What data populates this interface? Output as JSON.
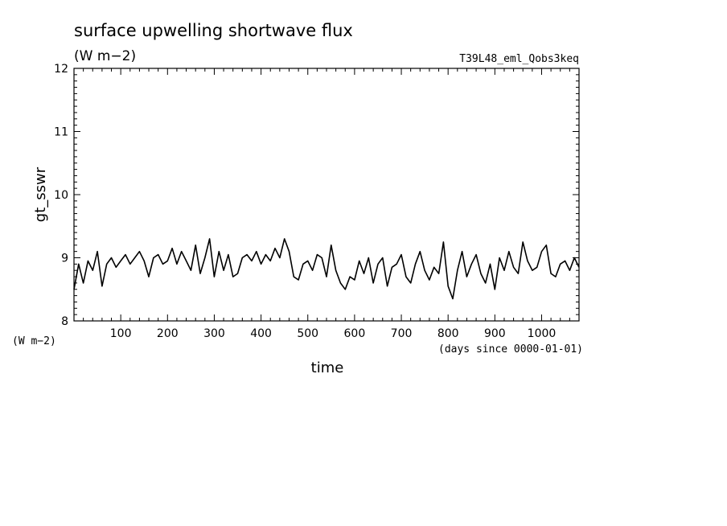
{
  "chart_data": {
    "type": "line",
    "title": "surface upwelling shortwave flux",
    "title_units": "(W m−2)",
    "run_label": "T39L48_eml_Qobs3keq",
    "xlabel": "time",
    "x_units": "(days since 0000-01-01)",
    "ylabel": "gt_sswr",
    "y_units": "(W m−2)",
    "xlim": [
      0,
      1080
    ],
    "ylim": [
      8,
      12
    ],
    "x_tick_labels": [
      "100",
      "200",
      "300",
      "400",
      "500",
      "600",
      "700",
      "800",
      "900",
      "1000"
    ],
    "y_tick_labels": [
      "8",
      "9",
      "10",
      "11",
      "12"
    ],
    "grid": false,
    "line_color": "#000000",
    "series": [
      {
        "x": [
          0,
          10,
          20,
          30,
          40,
          50,
          60,
          70,
          80,
          90,
          100,
          110,
          120,
          130,
          140,
          150,
          160,
          170,
          180,
          190,
          200,
          210,
          220,
          230,
          240,
          250,
          260,
          270,
          280,
          290,
          300,
          310,
          320,
          330,
          340,
          350,
          360,
          370,
          380,
          390,
          400,
          410,
          420,
          430,
          440,
          450,
          460,
          470,
          480,
          490,
          500,
          510,
          520,
          530,
          540,
          550,
          560,
          570,
          580,
          590,
          600,
          610,
          620,
          630,
          640,
          650,
          660,
          670,
          680,
          690,
          700,
          710,
          720,
          730,
          740,
          750,
          760,
          770,
          780,
          790,
          800,
          810,
          820,
          830,
          840,
          850,
          860,
          870,
          880,
          890,
          900,
          910,
          920,
          930,
          940,
          950,
          960,
          970,
          980,
          990,
          1000,
          1010,
          1020,
          1030,
          1040,
          1050,
          1060,
          1070,
          1080
        ],
        "values": [
          8.5,
          8.9,
          8.6,
          8.95,
          8.8,
          9.1,
          8.55,
          8.9,
          9.0,
          8.85,
          8.95,
          9.05,
          8.9,
          9.0,
          9.1,
          8.95,
          8.7,
          9.0,
          9.05,
          8.9,
          8.95,
          9.15,
          8.9,
          9.1,
          8.95,
          8.8,
          9.2,
          8.75,
          9.0,
          9.3,
          8.7,
          9.1,
          8.8,
          9.05,
          8.7,
          8.75,
          9.0,
          9.05,
          8.95,
          9.1,
          8.9,
          9.05,
          8.95,
          9.15,
          9.0,
          9.3,
          9.1,
          8.7,
          8.65,
          8.9,
          8.95,
          8.8,
          9.05,
          9.0,
          8.7,
          9.2,
          8.8,
          8.6,
          8.5,
          8.7,
          8.65,
          8.95,
          8.75,
          9.0,
          8.6,
          8.9,
          9.0,
          8.55,
          8.85,
          8.9,
          9.05,
          8.7,
          8.6,
          8.9,
          9.1,
          8.8,
          8.65,
          8.85,
          8.75,
          9.25,
          8.55,
          8.35,
          8.8,
          9.1,
          8.7,
          8.9,
          9.05,
          8.75,
          8.6,
          8.9,
          8.5,
          9.0,
          8.8,
          9.1,
          8.85,
          8.75,
          9.25,
          8.95,
          8.8,
          8.85,
          9.1,
          9.2,
          8.75,
          8.7,
          8.9,
          8.95,
          8.8,
          9.0,
          8.85
        ]
      }
    ]
  }
}
